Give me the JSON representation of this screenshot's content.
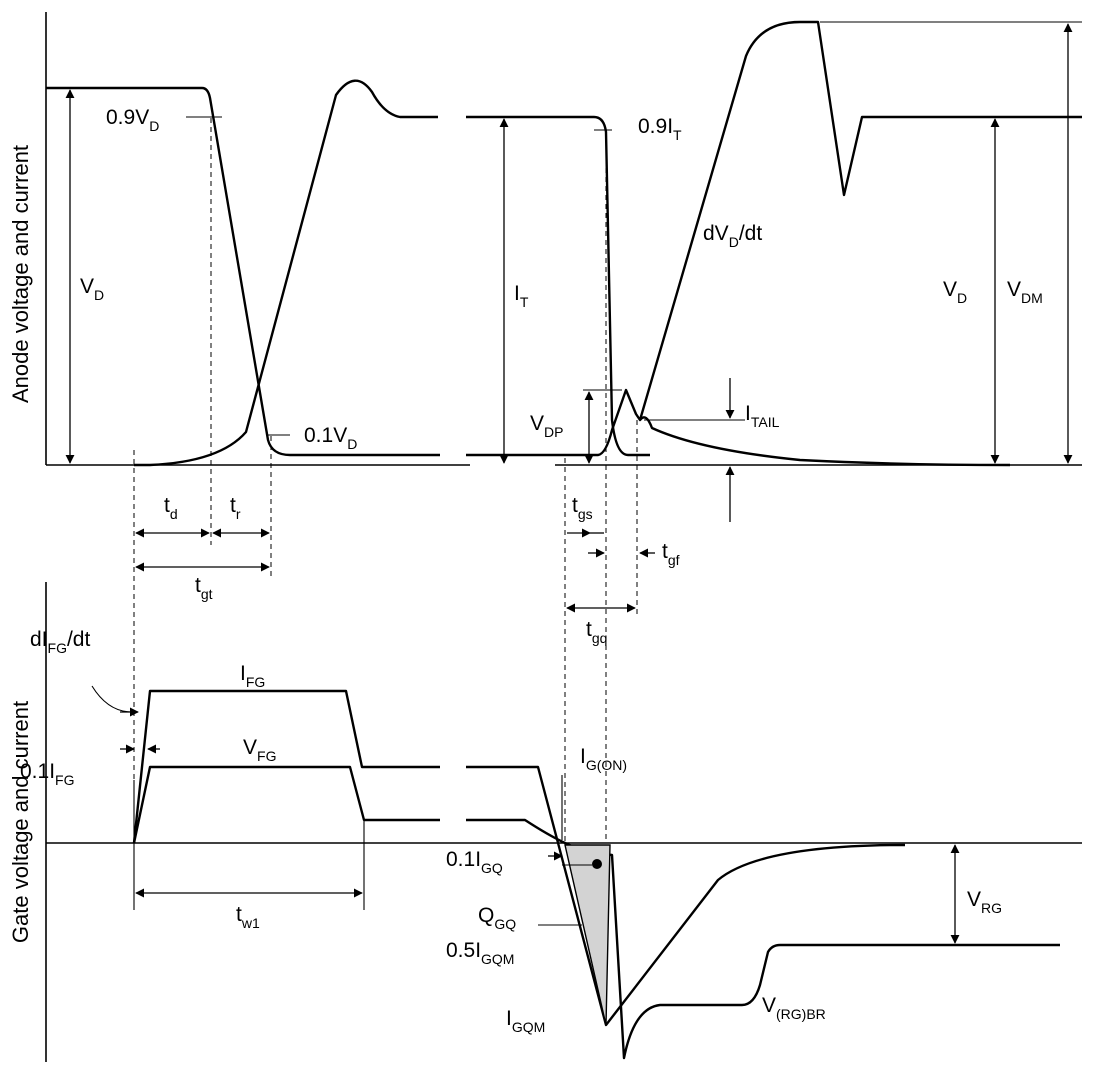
{
  "axes": {
    "top_ylabel": "Anode voltage and current",
    "bottom_ylabel": "Gate voltage and current"
  },
  "labels": {
    "vd_09": {
      "main": "0.9V",
      "sub": "D"
    },
    "vd_left": {
      "main": "V",
      "sub": "D"
    },
    "vd_01": {
      "main": "0.1V",
      "sub": "D"
    },
    "it_09": {
      "main": "0.9I",
      "sub": "T"
    },
    "it": {
      "main": "I",
      "sub": "T"
    },
    "dvd_dt": {
      "main": "dV",
      "sub": "D",
      "tail": "/dt"
    },
    "vd_right": {
      "main": "V",
      "sub": "D"
    },
    "vdm": {
      "main": "V",
      "sub": "DM"
    },
    "vdp": {
      "main": "V",
      "sub": "DP"
    },
    "itail": {
      "main": "I",
      "sub": "TAIL"
    },
    "td": {
      "main": "t",
      "sub": "d"
    },
    "tr": {
      "main": "t",
      "sub": "r"
    },
    "tgt": {
      "main": "t",
      "sub": "gt"
    },
    "tgs": {
      "main": "t",
      "sub": "gs"
    },
    "tgf": {
      "main": "t",
      "sub": "gf"
    },
    "tgq": {
      "main": "t",
      "sub": "gq"
    },
    "difg_dt": {
      "main": "dI",
      "sub": "FG",
      "tail": "/dt"
    },
    "ifg": {
      "main": "I",
      "sub": "FG"
    },
    "vfg": {
      "main": "V",
      "sub": "FG"
    },
    "ifg_01": {
      "main": "0.1I",
      "sub": "FG"
    },
    "ig_on": {
      "main": "I",
      "sub": "G(ON)"
    },
    "igq_01": {
      "main": "0.1I",
      "sub": "GQ"
    },
    "vrg": {
      "main": "V",
      "sub": "RG"
    },
    "tw1": {
      "main": "t",
      "sub": "w1"
    },
    "qgq": {
      "main": "Q",
      "sub": "GQ"
    },
    "igqm_05": {
      "main": "0.5I",
      "sub": "GQM"
    },
    "igqm": {
      "main": "I",
      "sub": "GQM"
    },
    "vrgbr": {
      "main": "V",
      "sub": "(RG)BR"
    }
  },
  "colors": {
    "line": "#000000",
    "charge_fill": "#d3d3d3"
  }
}
